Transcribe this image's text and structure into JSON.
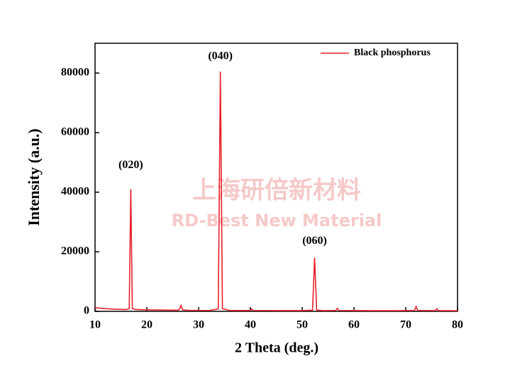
{
  "chart_data": {
    "type": "line",
    "xlabel": "2 Theta (deg.)",
    "ylabel": "Intensity (a.u.)",
    "x": [
      10,
      12,
      14,
      16,
      16.6,
      16.9,
      17.2,
      18,
      20,
      22,
      24,
      26,
      26.3,
      26.6,
      26.9,
      28,
      30,
      32,
      33.8,
      34.2,
      34.6,
      36,
      38,
      40,
      40.2,
      40.5,
      42,
      46,
      50,
      52,
      52.4,
      52.8,
      54,
      56.5,
      56.8,
      57.1,
      60,
      64,
      68,
      71.7,
      72,
      72.3,
      75.7,
      76,
      76.3,
      80
    ],
    "series": [
      {
        "name": "Black phosphorus",
        "color": "#e8202a",
        "values": [
          1200,
          900,
          700,
          600,
          900,
          41000,
          900,
          600,
          500,
          450,
          400,
          380,
          700,
          2000,
          500,
          350,
          300,
          300,
          800,
          80500,
          900,
          300,
          280,
          300,
          800,
          300,
          270,
          260,
          250,
          400,
          18000,
          400,
          250,
          300,
          1000,
          300,
          250,
          230,
          220,
          300,
          1600,
          300,
          250,
          900,
          250,
          200
        ]
      }
    ],
    "xlim": [
      10,
      80
    ],
    "xticks": [
      10,
      20,
      30,
      40,
      50,
      60,
      70,
      80
    ],
    "ylim": [
      0,
      90000
    ],
    "yticks": [
      0,
      20000,
      40000,
      60000,
      80000
    ],
    "legend": "upper right",
    "annotations": [
      {
        "text": "(020)",
        "x": 16.9,
        "y": 49000
      },
      {
        "text": "(040)",
        "x": 34.2,
        "y": 85500
      },
      {
        "text": "(060)",
        "x": 52.4,
        "y": 23500
      }
    ],
    "watermark": [
      "上海研倍新材料",
      "RD-Best New Material"
    ]
  }
}
